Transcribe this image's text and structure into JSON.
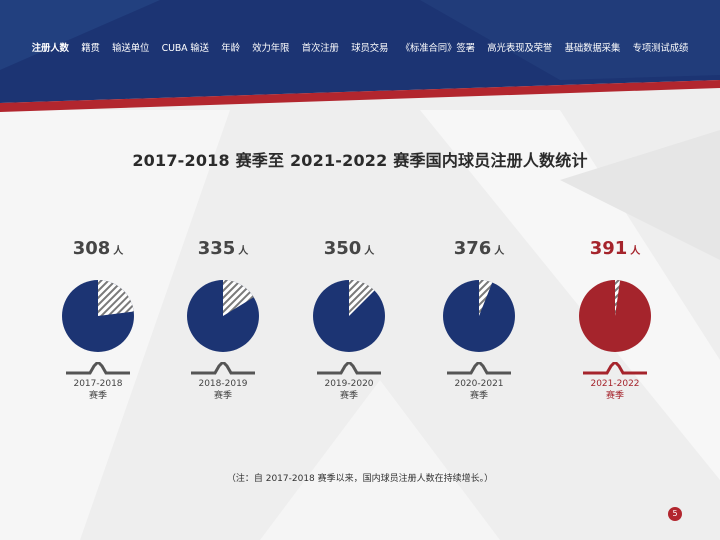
{
  "nav": {
    "items": [
      {
        "label": "注册人数",
        "active": true
      },
      {
        "label": "籍贯"
      },
      {
        "label": "输送单位"
      },
      {
        "label": "CUBA 输送"
      },
      {
        "label": "年龄"
      },
      {
        "label": "效力年限"
      },
      {
        "label": "首次注册"
      },
      {
        "label": "球员交易"
      },
      {
        "label": "《标准合同》签署"
      },
      {
        "label": "高光表现及荣誉"
      },
      {
        "label": "基础数据采集"
      },
      {
        "label": "专项测试成绩"
      }
    ]
  },
  "colors": {
    "navy": "#1c3473",
    "red": "#a5242c"
  },
  "chart_data": {
    "type": "pie",
    "title": "2017-2018 赛季至 2021-2022 赛季国内球员注册人数统计",
    "unit": "人",
    "items": [
      {
        "value": 308,
        "season": "2017-2018",
        "season_suffix": "赛季",
        "color": "#1c3473",
        "highlight": false
      },
      {
        "value": 335,
        "season": "2018-2019",
        "season_suffix": "赛季",
        "color": "#1c3473",
        "highlight": false
      },
      {
        "value": 350,
        "season": "2019-2020",
        "season_suffix": "赛季",
        "color": "#1c3473",
        "highlight": false
      },
      {
        "value": 376,
        "season": "2020-2021",
        "season_suffix": "赛季",
        "color": "#1c3473",
        "highlight": false
      },
      {
        "value": 391,
        "season": "2021-2022",
        "season_suffix": "赛季",
        "color": "#a5242c",
        "highlight": true
      }
    ]
  },
  "note": "（注：自 2017-2018 赛季以来，国内球员注册人数在持续增长。）",
  "page_number": "5"
}
